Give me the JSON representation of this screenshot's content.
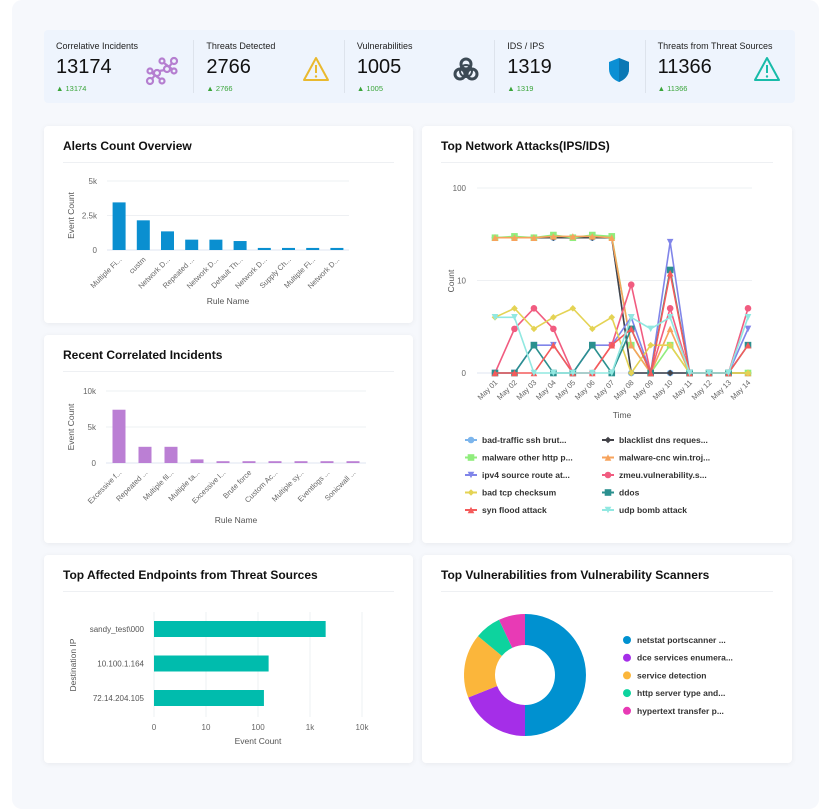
{
  "kpis": [
    {
      "label": "Correlative Incidents",
      "value": "13174",
      "delta": "13174",
      "icon": "link-nodes-icon",
      "color": "#b57ed0"
    },
    {
      "label": "Threats Detected",
      "value": "2766",
      "delta": "2766",
      "icon": "warning-icon",
      "color": "#e9b92f"
    },
    {
      "label": "Vulnerabilities",
      "value": "1005",
      "delta": "1005",
      "icon": "biohazard-icon",
      "color": "#3d4a55"
    },
    {
      "label": "IDS / IPS",
      "value": "1319",
      "delta": "1319",
      "icon": "shield-icon",
      "color": "#0b8fd4"
    },
    {
      "label": "Threats from Threat Sources",
      "value": "11366",
      "delta": "11366",
      "icon": "warning-icon",
      "color": "#18bba9"
    }
  ],
  "cards": {
    "alerts": {
      "title": "Alerts Count Overview"
    },
    "recent": {
      "title": "Recent Correlated Incidents"
    },
    "network": {
      "title": "Top Network Attacks(IPS/IDS)"
    },
    "endpoints": {
      "title": "Top Affected Endpoints from Threat Sources"
    },
    "vulns": {
      "title": "Top Vulnerabilities from Vulnerability Scanners"
    }
  },
  "chart_data": [
    {
      "id": "alerts",
      "type": "bar",
      "color": "#0a8fd0",
      "xlabel": "Rule Name",
      "ylabel": "Event Count",
      "ylim": [
        0,
        5000
      ],
      "yticks": [
        "0",
        "2.5k",
        "5k"
      ],
      "grid": true,
      "categories": [
        "Multiple Fi...",
        "custm",
        "Network D...",
        "Repeated ...",
        "Network D...",
        "Default Th...",
        "Network D...",
        "Supply Ch...",
        "Multiple Fi...",
        "Network D..."
      ],
      "values": [
        3450,
        2150,
        1350,
        750,
        750,
        650,
        150,
        150,
        150,
        150
      ]
    },
    {
      "id": "recent",
      "type": "bar",
      "color": "#bb7fd4",
      "xlabel": "Rule Name",
      "ylabel": "Event Count",
      "ylim": [
        0,
        10000
      ],
      "yticks": [
        "0",
        "5k",
        "10k"
      ],
      "grid": true,
      "categories": [
        "Excessive f...",
        "Repeated ...",
        "Multiple fil...",
        "Multiple ta...",
        "Excessive l...",
        "Brute force",
        "Custom Ac...",
        "Multiple sy...",
        "Eventlogs ...",
        "Sonicwall ..."
      ],
      "values": [
        7400,
        2250,
        2250,
        500,
        250,
        250,
        250,
        250,
        250,
        250
      ]
    },
    {
      "id": "network",
      "type": "line",
      "xlabel": "Time",
      "ylabel": "Count",
      "yscale": "log",
      "yticks": [
        "0",
        "10",
        "100"
      ],
      "grid": true,
      "legend": "bottom",
      "x": [
        "May 01",
        "May 02",
        "May 03",
        "May 04",
        "May 05",
        "May 06",
        "May 07",
        "May 08",
        "May 09",
        "May 10",
        "May 11",
        "May 12",
        "May 13",
        "May 14"
      ],
      "series": [
        {
          "name": "bad-traffic ssh brut...",
          "color": "#7cb5ec",
          "marker": "circle",
          "values": [
            28,
            28,
            28,
            28,
            28,
            28,
            28,
            0,
            0,
            0,
            0,
            0,
            0,
            0
          ]
        },
        {
          "name": "blacklist dns reques...",
          "color": "#434348",
          "marker": "diamond",
          "values": [
            28,
            28,
            28,
            28,
            28,
            28,
            28,
            0,
            0,
            0,
            0,
            0,
            0,
            0
          ]
        },
        {
          "name": "malware other http p...",
          "color": "#90ed7d",
          "marker": "square",
          "values": [
            28,
            29,
            28,
            30,
            28,
            30,
            29,
            1,
            0,
            1,
            0,
            0,
            0,
            0
          ]
        },
        {
          "name": "malware-cnc win.troj...",
          "color": "#f7a35c",
          "marker": "triangle",
          "values": [
            28,
            28,
            28,
            29,
            29,
            29,
            28,
            1,
            0,
            2,
            0,
            0,
            0,
            0
          ]
        },
        {
          "name": "ipv4 source route at...",
          "color": "#8085e9",
          "marker": "triangle-down",
          "values": [
            0,
            0,
            1,
            1,
            0,
            1,
            1,
            3,
            0,
            25,
            0,
            0,
            0,
            2
          ]
        },
        {
          "name": "zmeu.vulnerability.s...",
          "color": "#f15c80",
          "marker": "circle",
          "values": [
            0,
            2,
            4,
            2,
            0,
            0,
            1,
            8,
            0,
            4,
            0,
            0,
            0,
            4
          ]
        },
        {
          "name": "bad tcp checksum",
          "color": "#e4d354",
          "marker": "diamond",
          "values": [
            3,
            4,
            2,
            3,
            4,
            2,
            3,
            0,
            1,
            1,
            0,
            0,
            0,
            0
          ]
        },
        {
          "name": "ddos",
          "color": "#2b908f",
          "marker": "square",
          "values": [
            0,
            0,
            1,
            0,
            0,
            1,
            0,
            2,
            0,
            12,
            0,
            0,
            0,
            1
          ]
        },
        {
          "name": "syn flood attack",
          "color": "#f45b5b",
          "marker": "triangle",
          "values": [
            0,
            0,
            0,
            1,
            0,
            0,
            1,
            2,
            0,
            11,
            0,
            0,
            0,
            1
          ]
        },
        {
          "name": "udp bomb attack",
          "color": "#91e8e1",
          "marker": "triangle-down",
          "values": [
            3,
            3,
            0,
            0,
            0,
            0,
            0,
            3,
            2,
            3,
            0,
            0,
            0,
            3
          ]
        }
      ]
    },
    {
      "id": "endpoints",
      "type": "bar",
      "orientation": "horizontal",
      "color": "#00bcad",
      "xlabel": "Event Count",
      "ylabel": "Destination IP",
      "xscale": "log",
      "xticks": [
        "0",
        "10",
        "100",
        "1k",
        "10k"
      ],
      "grid": true,
      "categories": [
        "sandy_test\\000",
        "10.100.1.164",
        "72.14.204.105"
      ],
      "values": [
        2000,
        160,
        130
      ]
    },
    {
      "id": "vulns",
      "type": "pie",
      "donut": true,
      "legend": "right",
      "labels": [
        "netstat portscanner ...",
        "dce services enumera...",
        "service detection",
        "http server type and...",
        "hypertext transfer p..."
      ],
      "values": [
        50,
        19,
        17,
        7,
        7
      ],
      "colors": [
        "#0091d0",
        "#a52ee8",
        "#fbb63b",
        "#0dd39e",
        "#e83ab5"
      ]
    }
  ]
}
